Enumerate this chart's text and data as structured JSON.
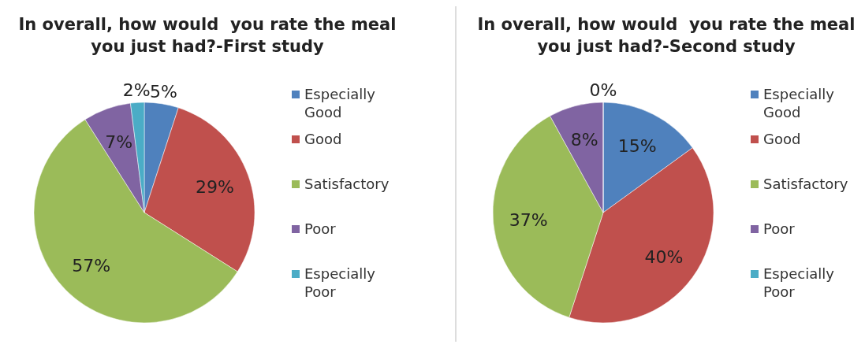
{
  "chart_data": [
    {
      "type": "pie",
      "title": "In overall, how would  you rate the meal you just had?-First study",
      "categories": [
        "Especially Good",
        "Good",
        "Satisfactory",
        "Poor",
        "Especially Poor"
      ],
      "values": [
        5,
        29,
        57,
        7,
        2
      ],
      "colors": [
        "#4f81bd",
        "#c0504d",
        "#9bbb59",
        "#8064a2",
        "#4bacc6"
      ],
      "value_labels": [
        "5%",
        "29%",
        "57%",
        "7%",
        "2%"
      ],
      "legend": "right"
    },
    {
      "type": "pie",
      "title": "In overall, how would  you rate the meal you just had?-Second study",
      "categories": [
        "Especially Good",
        "Good",
        "Satisfactory",
        "Poor",
        "Especially Poor"
      ],
      "values": [
        15,
        40,
        37,
        8,
        0
      ],
      "colors": [
        "#4f81bd",
        "#c0504d",
        "#9bbb59",
        "#8064a2",
        "#4bacc6"
      ],
      "value_labels": [
        "15%",
        "40%",
        "37%",
        "8%",
        "0%"
      ],
      "legend": "right"
    }
  ]
}
